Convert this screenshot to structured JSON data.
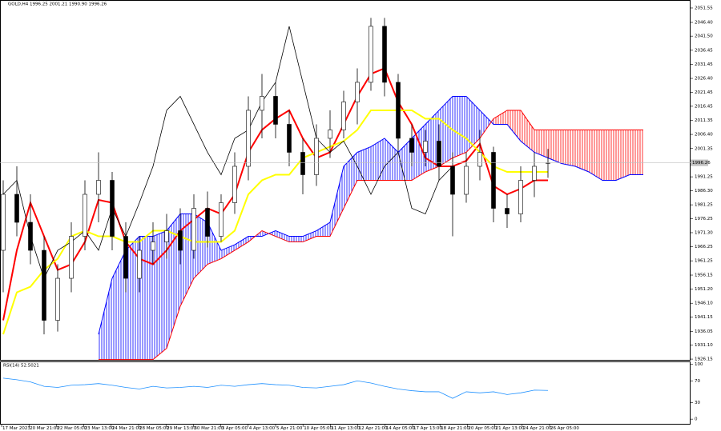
{
  "chart_data": [
    {
      "type": "candlestick",
      "title": "GOLD,H4  1996.25 2001.21 1990.90 1996.26",
      "ylim": [
        1925.6,
        2054.4
      ],
      "yticks": [
        2051.55,
        {
          "value": 2046.4,
          "label": "2046.40"
        },
        {
          "value": 2041.5,
          "label": "2041.50"
        },
        2036.45,
        2031.45,
        {
          "value": 2026.4,
          "label": "2026.40"
        },
        2021.45,
        2016.45,
        2011.35,
        {
          "value": 2006.4,
          "label": "2006.40"
        },
        2001.35,
        1991.25,
        {
          "value": 1986.3,
          "label": "1986.30"
        },
        1981.25,
        1976.25,
        {
          "value": 1971.3,
          "label": "1971.30"
        },
        1966.25,
        1961.25,
        1956.15,
        {
          "value": 1951.2,
          "label": "1951.20"
        },
        {
          "value": 1946.1,
          "label": "1946.10"
        },
        1941.15,
        1936.05,
        {
          "value": 1931.1,
          "label": "1931.10"
        },
        1926.15
      ],
      "current_price": 1996.26,
      "xlabels": [
        "17 Mar 2023",
        "20 Mar 21:00",
        "22 Mar 05:00",
        "23 Mar 13:00",
        "24 Mar 21:00",
        "28 Mar 05:00",
        "29 Mar 13:00",
        "30 Mar 21:00",
        "3 Apr 05:00",
        "4 Apr 13:00",
        "5 Apr 21:00",
        "10 Apr 05:00",
        "11 Apr 13:00",
        "12 Apr 21:00",
        "14 Apr 05:00",
        "17 Apr 13:00",
        "18 Apr 21:00",
        "20 Apr 05:00",
        "21 Apr 13:00",
        "24 Apr 21:00",
        "26 Apr 05:00"
      ],
      "open": [
        1965,
        1985,
        1975,
        1965,
        1940,
        1955,
        1970,
        1985,
        1990,
        1970,
        1955,
        1965,
        1968,
        1972,
        1965,
        1980,
        1970,
        1982,
        1995,
        2015,
        2020,
        2010,
        2000,
        1992,
        2005,
        2008,
        2018,
        2025,
        2045,
        2025,
        2005,
        2000,
        2004,
        1995,
        1985,
        1995,
        2000,
        1980,
        1978,
        1990,
        1996.25
      ],
      "high": [
        1990,
        1995,
        1985,
        1970,
        1960,
        1975,
        1990,
        2000,
        1993,
        1975,
        1970,
        1975,
        1978,
        1980,
        1985,
        1986,
        1985,
        2000,
        2020,
        2028,
        2025,
        2015,
        2005,
        2010,
        2015,
        2022,
        2030,
        2048,
        2048,
        2028,
        2010,
        2008,
        2010,
        2000,
        2000,
        2008,
        2002,
        1985,
        1995,
        2000,
        2001.21
      ],
      "low": [
        1950,
        1970,
        1960,
        1935,
        1936,
        1950,
        1965,
        1975,
        1965,
        1950,
        1950,
        1960,
        1962,
        1960,
        1962,
        1966,
        1968,
        1978,
        1990,
        2005,
        2005,
        1995,
        1985,
        1988,
        1998,
        2005,
        2010,
        2022,
        2020,
        2000,
        1995,
        1995,
        1990,
        1970,
        1982,
        1990,
        1975,
        1973,
        1975,
        1984,
        1990.9
      ],
      "close": [
        1985,
        1975,
        1965,
        1940,
        1955,
        1970,
        1985,
        1990,
        1970,
        1955,
        1965,
        1968,
        1972,
        1965,
        1980,
        1970,
        1982,
        1995,
        2015,
        2020,
        2010,
        2000,
        1992,
        2005,
        2008,
        2018,
        2025,
        2045,
        2025,
        2005,
        2000,
        2004,
        1995,
        1985,
        1995,
        2000,
        1980,
        1978,
        1990,
        1995,
        1996.26
      ],
      "candle_color": "#000000",
      "lines": [
        {
          "color": "#ff0000",
          "width": 2,
          "values": [
            1940,
            1965,
            1982,
            1970,
            1958,
            1960,
            1968,
            1983,
            1982,
            1968,
            1962,
            1960,
            1965,
            1972,
            1976,
            1980,
            1978,
            1985,
            2000,
            2008,
            2012,
            2015,
            2005,
            1998,
            2000,
            2010,
            2020,
            2028,
            2030,
            2018,
            2010,
            1998,
            1995,
            1995,
            1997,
            2003,
            1988,
            1985,
            1987,
            1990,
            1990
          ]
        },
        {
          "color": "#ffff00",
          "width": 2,
          "values": [
            1935,
            1950,
            1952,
            1958,
            1962,
            1970,
            1972,
            1970,
            1970,
            1968,
            1968,
            1972,
            1972,
            1970,
            1968,
            1968,
            1968,
            1972,
            1985,
            1990,
            1992,
            1992,
            1998,
            2000,
            2002,
            2004,
            2008,
            2015,
            2015,
            2015,
            2015,
            2012,
            2012,
            2008,
            2005,
            2000,
            1995,
            1993,
            1993,
            1993,
            1993
          ]
        },
        {
          "color": "#000000",
          "width": 0.8,
          "values": [
            1985,
            1990,
            1970,
            1955,
            1965,
            1968,
            1972,
            1965,
            1980,
            1970,
            1982,
            1995,
            2015,
            2020,
            2010,
            2000,
            1992,
            2005,
            2008,
            2018,
            2025,
            2045,
            2025,
            2005,
            2000,
            2004,
            1995,
            1985,
            1995,
            2000,
            1980,
            1978,
            1990,
            1995,
            null,
            null,
            null,
            null,
            null,
            null,
            null
          ]
        }
      ],
      "cloud": {
        "bull_color": "#0000ff",
        "bear_color": "#ff0000",
        "span_a": [
          null,
          null,
          null,
          null,
          null,
          null,
          null,
          1935,
          1955,
          1965,
          1970,
          1970,
          1972,
          1978,
          1978,
          1975,
          1965,
          1967,
          1970,
          1970,
          1972,
          1970,
          1970,
          1972,
          1975,
          1995,
          2000,
          2002,
          2005,
          2000,
          2005,
          2010,
          2015,
          2020,
          2020,
          2015,
          2010,
          2010,
          2004,
          2000,
          1998,
          1996,
          1995,
          1993,
          1990,
          1990,
          1992,
          1992
        ],
        "span_b": [
          null,
          null,
          null,
          null,
          null,
          null,
          null,
          1926,
          1926,
          1926,
          1926,
          1926,
          1930,
          1945,
          1955,
          1960,
          1962,
          1965,
          1968,
          1972,
          1970,
          1968,
          1968,
          1970,
          1970,
          1980,
          1990,
          1990,
          1990,
          1990,
          1990,
          1993,
          1995,
          1998,
          2000,
          2005,
          2012,
          2015,
          2015,
          2008,
          2008,
          2008,
          2008,
          2008,
          2008,
          2008,
          2008,
          2008
        ]
      }
    },
    {
      "type": "line",
      "title": "RSI(14) 52.5021",
      "ylim": [
        -10,
        104
      ],
      "yticks": [
        100,
        70,
        30,
        0
      ],
      "color": "#1e90ff",
      "values": [
        75,
        72,
        68,
        60,
        58,
        62,
        63,
        65,
        62,
        58,
        55,
        60,
        57,
        58,
        60,
        58,
        62,
        60,
        63,
        65,
        63,
        62,
        58,
        57,
        60,
        63,
        70,
        66,
        60,
        55,
        52,
        50,
        50,
        38,
        50,
        48,
        50,
        45,
        48,
        53,
        52.5
      ]
    }
  ]
}
